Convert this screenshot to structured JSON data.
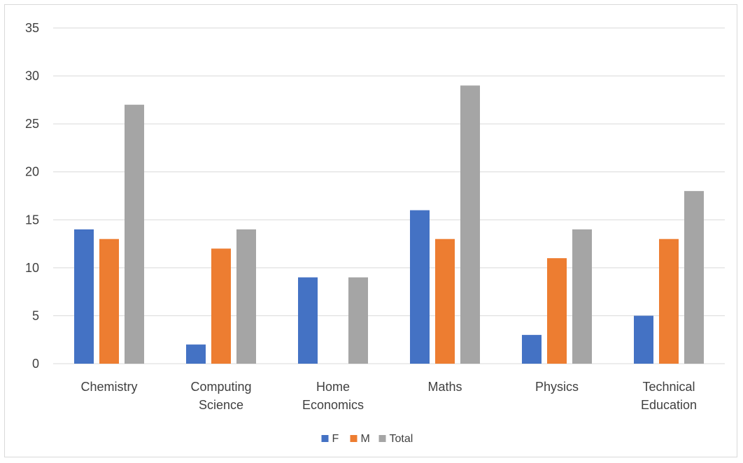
{
  "chart_data": {
    "type": "bar",
    "categories": [
      [
        "Chemistry"
      ],
      [
        "Computing",
        "Science"
      ],
      [
        "Home",
        "Economics"
      ],
      [
        "Maths"
      ],
      [
        "Physics"
      ],
      [
        "Technical",
        "Education"
      ]
    ],
    "series": [
      {
        "name": "F",
        "color": "#4472c4",
        "values": [
          14,
          2,
          9,
          16,
          3,
          5
        ]
      },
      {
        "name": "M",
        "color": "#ed7d31",
        "values": [
          13,
          12,
          0,
          13,
          11,
          13
        ]
      },
      {
        "name": "Total",
        "color": "#a5a5a5",
        "values": [
          27,
          14,
          9,
          29,
          14,
          18
        ]
      }
    ],
    "yticks": [
      0,
      5,
      10,
      15,
      20,
      25,
      30,
      35
    ],
    "ylim": [
      0,
      35
    ],
    "grid": true,
    "legend": "bottom-center"
  }
}
